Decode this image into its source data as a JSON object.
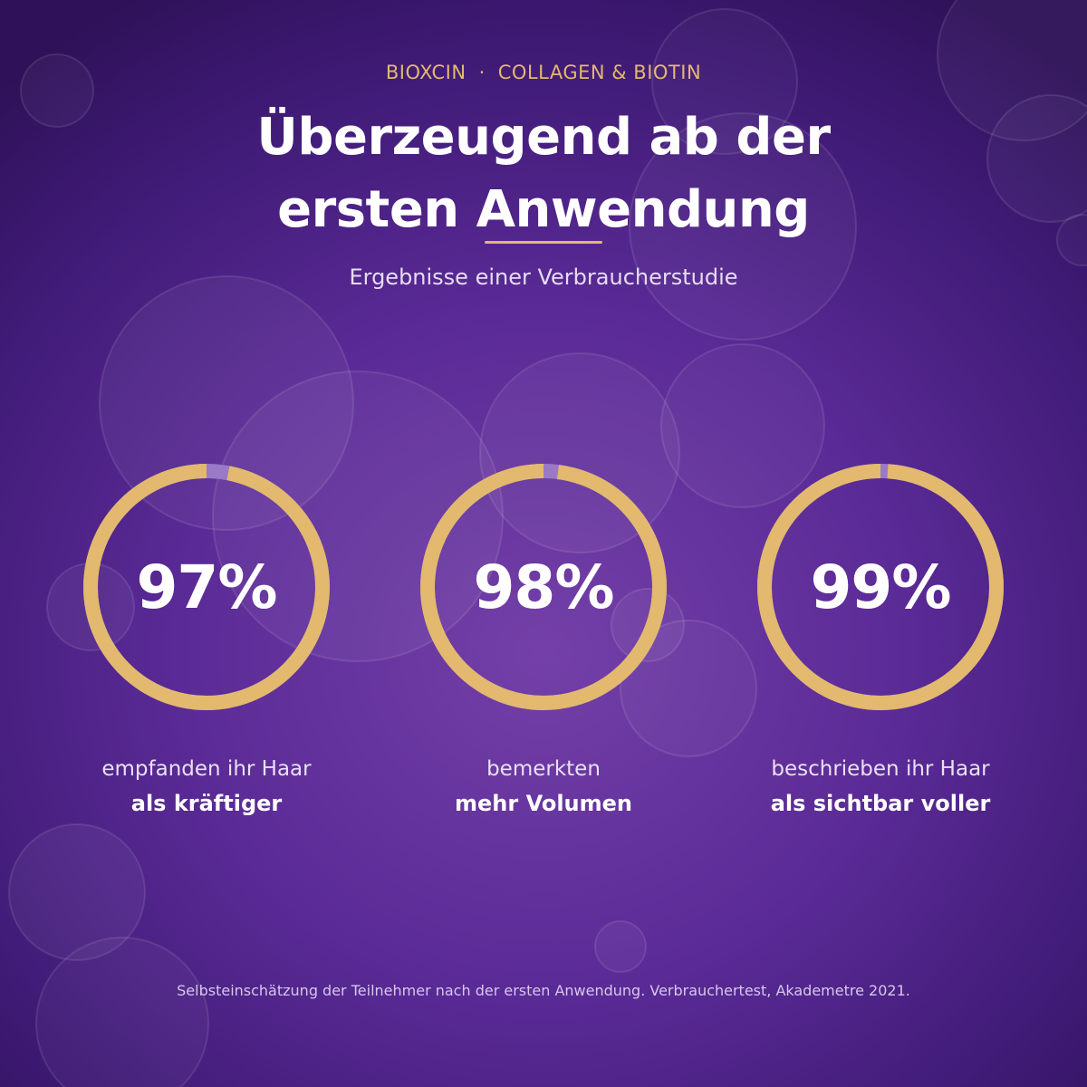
{
  "header": {
    "brand": "BIOXCIN",
    "separator": "·",
    "product": "COLLAGEN & BIOTIN",
    "headline_line1": "Überzeugend ab der",
    "headline_line2": "ersten Anwendung",
    "subtitle": "Ergebnisse einer Verbraucherstudie"
  },
  "stats": [
    {
      "label": "97%",
      "value": 97,
      "caption_line1": "empfanden ihr Haar",
      "caption_line2": "als kräftiger"
    },
    {
      "label": "98%",
      "value": 98,
      "caption_line1": "bemerkten",
      "caption_line2": "mehr Volumen"
    },
    {
      "label": "99%",
      "value": 99,
      "caption_line1": "beschrieben ihr Haar",
      "caption_line2": "als sichtbar voller"
    }
  ],
  "footnote": "Selbsteinschätzung der Teilnehmer nach der ersten Anwendung. Verbrauchertest, Akademetre 2021.",
  "colors": {
    "accent_gold": "#e2b96e",
    "ring_track": "#9a7ac6",
    "background_deep": "#2e1158",
    "background_light": "#7440a8"
  }
}
